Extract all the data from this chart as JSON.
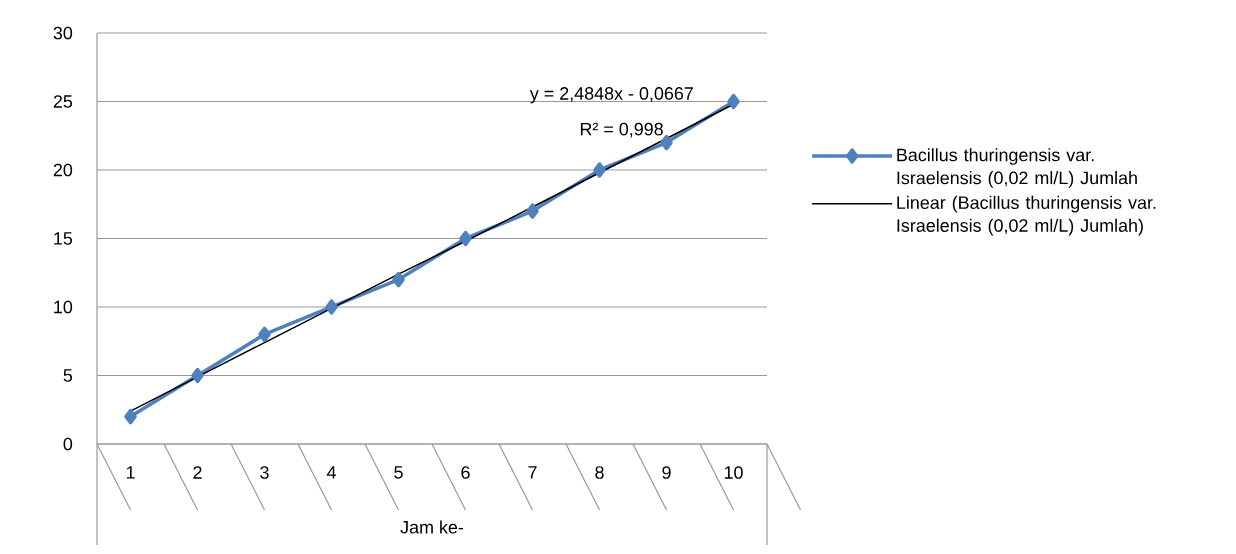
{
  "chart_data": {
    "type": "line",
    "xlabel": "Jam ke-",
    "categories": [
      "1",
      "2",
      "3",
      "4",
      "5",
      "6",
      "7",
      "8",
      "9",
      "10"
    ],
    "series": [
      {
        "name": "Bacillus thuringensis var. Israelensis  (0,02 ml/L) Jumlah",
        "color": "#4f81bd",
        "marker": "diamond",
        "values": [
          2,
          5,
          8,
          10,
          12,
          15,
          17,
          20,
          22,
          25
        ]
      },
      {
        "name": "Linear (Bacillus thuringensis var. Israelensis  (0,02 ml/L) Jumlah)",
        "color": "#000000",
        "marker": "none",
        "values": [
          2.4,
          4.9,
          7.4,
          9.9,
          12.4,
          14.8,
          17.3,
          19.8,
          22.3,
          24.8
        ]
      }
    ],
    "ylim": [
      0,
      30
    ],
    "yticks": [
      0,
      5,
      10,
      15,
      20,
      25,
      30
    ],
    "grid": "y",
    "legend": "right",
    "annotations": [
      "y = 2,4848x - 0,0667",
      "R² = 0,998"
    ]
  }
}
